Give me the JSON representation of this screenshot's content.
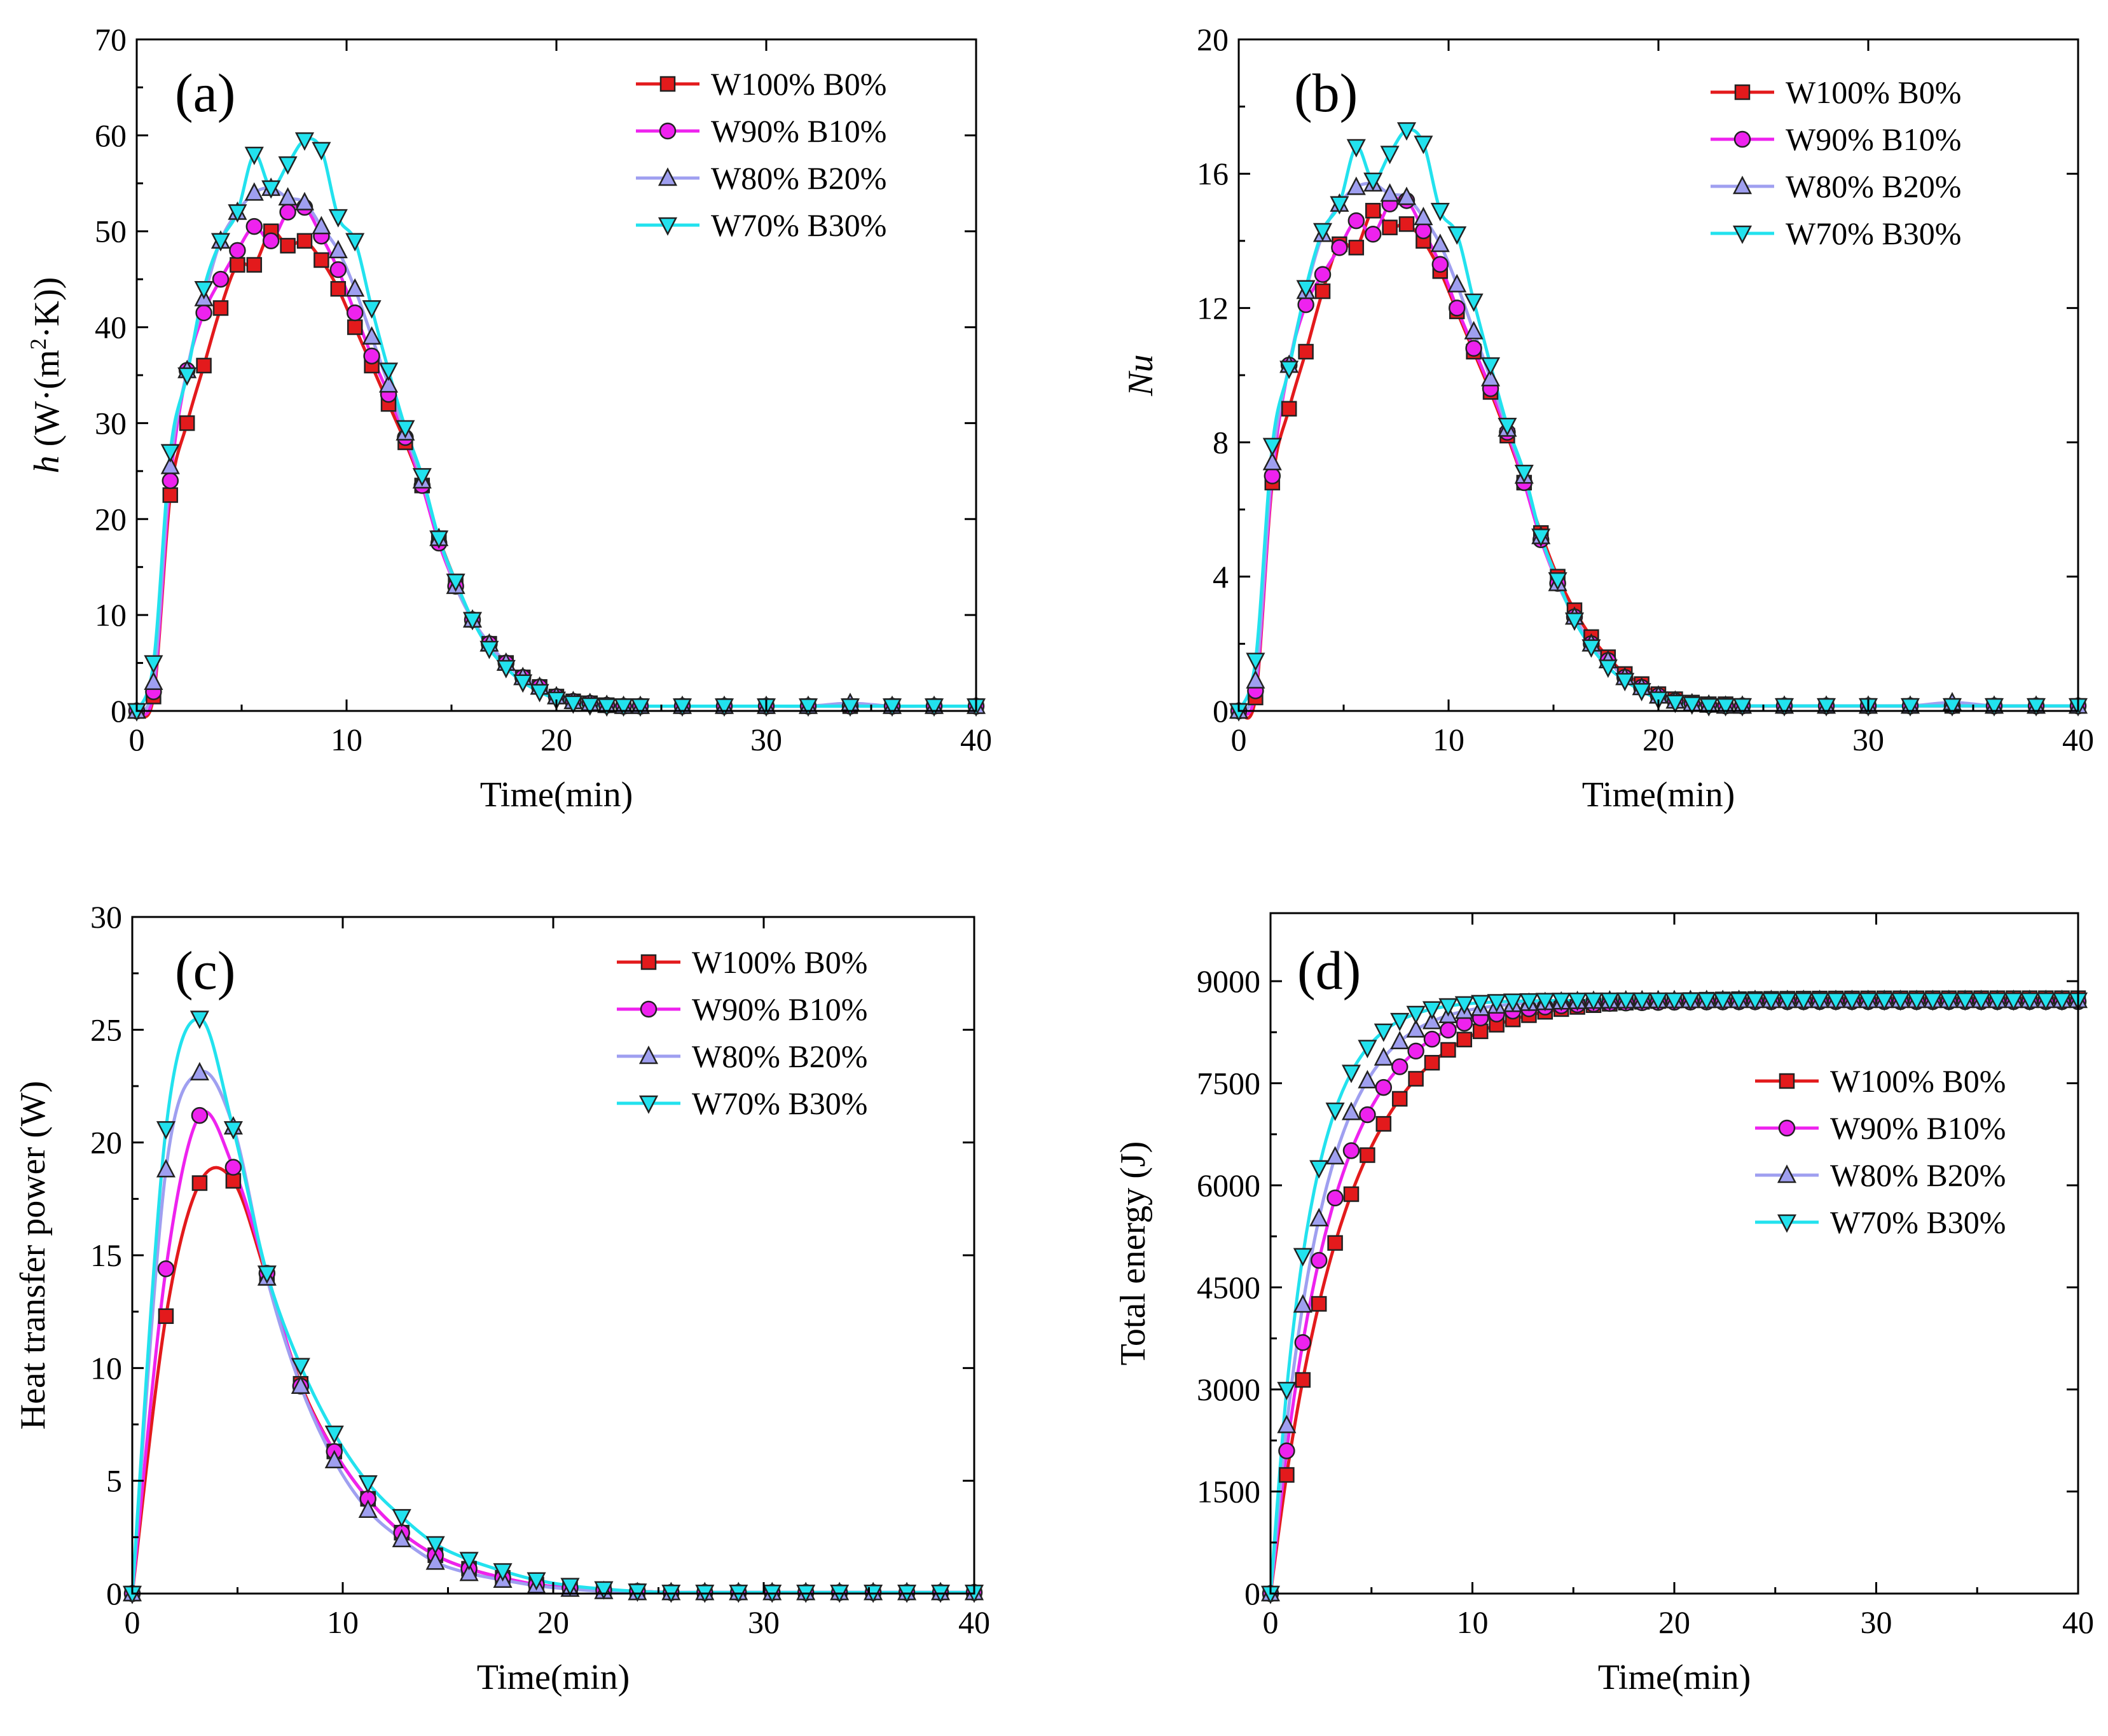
{
  "colors": {
    "s1": "#e31a1c",
    "s2": "#ee22ee",
    "s3": "#9f9ff0",
    "s4": "#22e2ee"
  },
  "chart_data": [
    {
      "type": "line",
      "panel_label": "(a)",
      "xlabel": "Time(min)",
      "ylabel_italic": "h",
      "ylabel_rest": " (W·(m",
      "ylabel_sup": "2",
      "ylabel_tail": "·K))",
      "xlim": [
        0,
        40
      ],
      "ylim": [
        0,
        70
      ],
      "xticks": [
        "0",
        "10",
        "20",
        "30",
        "40"
      ],
      "yticks": [
        "0",
        "10",
        "20",
        "30",
        "40",
        "50",
        "60",
        "70"
      ],
      "legend_position": "top-right",
      "series": [
        {
          "name": "W100% B0%",
          "marker": "square",
          "color": "#e31a1c",
          "x": [
            0,
            0.8,
            1.6,
            2.4,
            3.2,
            4.0,
            4.8,
            5.6,
            6.4,
            7.2,
            8.0,
            8.8,
            9.6,
            10.4,
            11.2,
            12.0,
            12.8,
            13.6,
            14.4,
            15.2,
            16.0,
            16.8,
            17.6,
            18.4,
            19.2,
            20.0,
            20.8,
            21.6,
            22.4,
            23.2,
            24.0,
            26,
            28,
            30,
            32,
            34,
            36,
            38,
            40
          ],
          "y": [
            0,
            1.5,
            22.5,
            30,
            36,
            42,
            46.5,
            46.5,
            50,
            48.5,
            49,
            47,
            44,
            40,
            36,
            32,
            28,
            23.5,
            18,
            13.5,
            9.5,
            7,
            5,
            3.5,
            2.5,
            1.5,
            1,
            0.8,
            0.6,
            0.5,
            0.5,
            0.5,
            0.5,
            0.5,
            0.5,
            0.5,
            0.5,
            0.5,
            0.5
          ]
        },
        {
          "name": "W90% B10%",
          "marker": "circle",
          "color": "#ee22ee",
          "x": [
            0,
            0.8,
            1.6,
            2.4,
            3.2,
            4.0,
            4.8,
            5.6,
            6.4,
            7.2,
            8.0,
            8.8,
            9.6,
            10.4,
            11.2,
            12.0,
            12.8,
            13.6,
            14.4,
            15.2,
            16.0,
            16.8,
            17.6,
            18.4,
            19.2,
            20.0,
            20.8,
            21.6,
            22.4,
            23.2,
            24.0,
            26,
            28,
            30,
            32,
            34,
            36,
            38,
            40
          ],
          "y": [
            0,
            2,
            24,
            35.5,
            41.5,
            45,
            48,
            50.5,
            49,
            52,
            52.5,
            49.5,
            46,
            41.5,
            37,
            33,
            28.5,
            23.5,
            17.5,
            13,
            9.5,
            7,
            5,
            3.5,
            2.5,
            1.5,
            1,
            0.8,
            0.6,
            0.5,
            0.5,
            0.5,
            0.5,
            0.5,
            0.5,
            0.5,
            0.5,
            0.5,
            0.5
          ]
        },
        {
          "name": "W80% B20%",
          "marker": "triangle",
          "color": "#9f9ff0",
          "x": [
            0,
            0.8,
            1.6,
            2.4,
            3.2,
            4.0,
            4.8,
            5.6,
            6.4,
            7.2,
            8.0,
            8.8,
            9.6,
            10.4,
            11.2,
            12.0,
            12.8,
            13.6,
            14.4,
            15.2,
            16.0,
            16.8,
            17.6,
            18.4,
            19.2,
            20.0,
            20.8,
            21.6,
            22.4,
            23.2,
            24.0,
            26,
            28,
            30,
            32,
            34,
            36,
            38,
            40
          ],
          "y": [
            0,
            3,
            25.5,
            35.5,
            43,
            49,
            52,
            54,
            54.5,
            53.5,
            53,
            50.5,
            48,
            44,
            39,
            34,
            29,
            24,
            18,
            13,
            9.5,
            7,
            5,
            3.5,
            2.5,
            1.5,
            1,
            0.8,
            0.6,
            0.5,
            0.5,
            0.5,
            0.5,
            0.5,
            0.5,
            0.8,
            0.5,
            0.5,
            0.5
          ]
        },
        {
          "name": "W70% B30%",
          "marker": "triangle-down",
          "color": "#22e2ee",
          "x": [
            0,
            0.8,
            1.6,
            2.4,
            3.2,
            4.0,
            4.8,
            5.6,
            6.4,
            7.2,
            8.0,
            8.8,
            9.6,
            10.4,
            11.2,
            12.0,
            12.8,
            13.6,
            14.4,
            15.2,
            16.0,
            16.8,
            17.6,
            18.4,
            19.2,
            20.0,
            20.8,
            21.6,
            22.4,
            23.2,
            24.0,
            26,
            28,
            30,
            32,
            34,
            36,
            38,
            40
          ],
          "y": [
            0,
            5,
            27,
            35,
            44,
            49,
            52,
            58,
            54.5,
            57,
            59.5,
            58.5,
            51.5,
            49,
            42,
            35.5,
            29.5,
            24.5,
            18,
            13.5,
            9.5,
            6.5,
            4.5,
            3,
            2,
            1.2,
            0.8,
            0.6,
            0.5,
            0.5,
            0.5,
            0.5,
            0.5,
            0.5,
            0.5,
            0.5,
            0.5,
            0.5,
            0.5
          ]
        }
      ]
    },
    {
      "type": "line",
      "panel_label": "(b)",
      "xlabel": "Time(min)",
      "ylabel_italic": "Nu",
      "ylabel_rest": "",
      "ylabel_sup": "",
      "ylabel_tail": "",
      "xlim": [
        0,
        40
      ],
      "ylim": [
        0,
        20
      ],
      "xticks": [
        "0",
        "10",
        "20",
        "30",
        "40"
      ],
      "yticks": [
        "0",
        "4",
        "8",
        "12",
        "16",
        "20"
      ],
      "legend_position": "top-right",
      "series": [
        {
          "name": "W100% B0%",
          "marker": "square",
          "color": "#e31a1c",
          "x": [
            0,
            0.8,
            1.6,
            2.4,
            3.2,
            4.0,
            4.8,
            5.6,
            6.4,
            7.2,
            8.0,
            8.8,
            9.6,
            10.4,
            11.2,
            12.0,
            12.8,
            13.6,
            14.4,
            15.2,
            16.0,
            16.8,
            17.6,
            18.4,
            19.2,
            20.0,
            20.8,
            21.6,
            22.4,
            23.2,
            24.0,
            26,
            28,
            30,
            32,
            34,
            36,
            38,
            40
          ],
          "y": [
            0,
            0.4,
            6.8,
            9,
            10.7,
            12.5,
            13.9,
            13.8,
            14.9,
            14.4,
            14.5,
            14,
            13.1,
            11.9,
            10.7,
            9.5,
            8.2,
            6.8,
            5.3,
            4,
            3,
            2.2,
            1.6,
            1.1,
            0.8,
            0.5,
            0.35,
            0.25,
            0.2,
            0.2,
            0.15,
            0.15,
            0.15,
            0.15,
            0.15,
            0.15,
            0.15,
            0.15,
            0.15
          ]
        },
        {
          "name": "W90% B10%",
          "marker": "circle",
          "color": "#ee22ee",
          "x": [
            0,
            0.8,
            1.6,
            2.4,
            3.2,
            4.0,
            4.8,
            5.6,
            6.4,
            7.2,
            8.0,
            8.8,
            9.6,
            10.4,
            11.2,
            12.0,
            12.8,
            13.6,
            14.4,
            15.2,
            16.0,
            16.8,
            17.6,
            18.4,
            19.2,
            20.0,
            20.8,
            21.6,
            22.4,
            23.2,
            24.0,
            26,
            28,
            30,
            32,
            34,
            36,
            38,
            40
          ],
          "y": [
            0,
            0.6,
            7,
            10.3,
            12.1,
            13,
            13.8,
            14.6,
            14.2,
            15.1,
            15.2,
            14.3,
            13.3,
            12,
            10.8,
            9.6,
            8.3,
            6.8,
            5.1,
            3.8,
            2.8,
            2,
            1.5,
            1,
            0.7,
            0.45,
            0.3,
            0.22,
            0.18,
            0.15,
            0.15,
            0.15,
            0.15,
            0.15,
            0.15,
            0.15,
            0.15,
            0.15,
            0.15
          ]
        },
        {
          "name": "W80% B20%",
          "marker": "triangle",
          "color": "#9f9ff0",
          "x": [
            0,
            0.8,
            1.6,
            2.4,
            3.2,
            4.0,
            4.8,
            5.6,
            6.4,
            7.2,
            8.0,
            8.8,
            9.6,
            10.4,
            11.2,
            12.0,
            12.8,
            13.6,
            14.4,
            15.2,
            16.0,
            16.8,
            17.6,
            18.4,
            19.2,
            20.0,
            20.8,
            21.6,
            22.4,
            23.2,
            24.0,
            26,
            28,
            30,
            32,
            34,
            36,
            38,
            40
          ],
          "y": [
            0,
            0.9,
            7.4,
            10.3,
            12.5,
            14.2,
            15.1,
            15.6,
            15.7,
            15.4,
            15.3,
            14.7,
            13.9,
            12.7,
            11.3,
            9.9,
            8.4,
            7,
            5.2,
            3.8,
            2.8,
            2,
            1.5,
            1,
            0.7,
            0.45,
            0.3,
            0.22,
            0.18,
            0.15,
            0.15,
            0.15,
            0.15,
            0.15,
            0.15,
            0.25,
            0.15,
            0.15,
            0.15
          ]
        },
        {
          "name": "W70% B30%",
          "marker": "triangle-down",
          "color": "#22e2ee",
          "x": [
            0,
            0.8,
            1.6,
            2.4,
            3.2,
            4.0,
            4.8,
            5.6,
            6.4,
            7.2,
            8.0,
            8.8,
            9.6,
            10.4,
            11.2,
            12.0,
            12.8,
            13.6,
            14.4,
            15.2,
            16.0,
            16.8,
            17.6,
            18.4,
            19.2,
            20.0,
            20.8,
            21.6,
            22.4,
            23.2,
            24.0,
            26,
            28,
            30,
            32,
            34,
            36,
            38,
            40
          ],
          "y": [
            0,
            1.5,
            7.9,
            10.2,
            12.6,
            14.3,
            15.1,
            16.8,
            15.8,
            16.6,
            17.3,
            16.9,
            14.9,
            14.2,
            12.2,
            10.3,
            8.5,
            7.1,
            5.2,
            3.9,
            2.7,
            1.9,
            1.3,
            0.9,
            0.6,
            0.35,
            0.25,
            0.2,
            0.15,
            0.15,
            0.15,
            0.15,
            0.15,
            0.15,
            0.15,
            0.15,
            0.15,
            0.15,
            0.15
          ]
        }
      ]
    },
    {
      "type": "line",
      "panel_label": "(c)",
      "xlabel": "Time(min)",
      "ylabel_italic": "",
      "ylabel_rest": "Heat transfer power (W)",
      "ylabel_sup": "",
      "ylabel_tail": "",
      "xlim": [
        0,
        40
      ],
      "ylim": [
        0,
        30
      ],
      "xticks": [
        "0",
        "10",
        "20",
        "30",
        "40"
      ],
      "yticks": [
        "0",
        "5",
        "10",
        "15",
        "20",
        "25",
        "30"
      ],
      "legend_position": "top-right",
      "series": [
        {
          "name": "W100% B0%",
          "marker": "square",
          "color": "#e31a1c",
          "x": [
            0,
            1.6,
            3.2,
            4.8,
            6.4,
            8.0,
            9.6,
            11.2,
            12.8,
            14.4,
            16.0,
            17.6,
            19.2,
            20.8,
            22.4,
            24.0,
            25.6,
            27.2,
            28.8,
            30.4,
            32.0,
            33.6,
            35.2,
            36.8,
            38.4,
            40.0
          ],
          "y": [
            0,
            12.3,
            18.2,
            18.3,
            14,
            9.3,
            6.3,
            4.2,
            2.7,
            1.7,
            1.1,
            0.7,
            0.4,
            0.25,
            0.15,
            0.1,
            0.05,
            0.05,
            0.05,
            0.05,
            0.05,
            0.05,
            0.05,
            0.05,
            0.05,
            0.05
          ]
        },
        {
          "name": "W90% B10%",
          "marker": "circle",
          "color": "#ee22ee",
          "x": [
            0,
            1.6,
            3.2,
            4.8,
            6.4,
            8.0,
            9.6,
            11.2,
            12.8,
            14.4,
            16.0,
            17.6,
            19.2,
            20.8,
            22.4,
            24.0,
            25.6,
            27.2,
            28.8,
            30.4,
            32.0,
            33.6,
            35.2,
            36.8,
            38.4,
            40.0
          ],
          "y": [
            0,
            14.4,
            21.2,
            18.9,
            14.2,
            9.2,
            6.3,
            4.2,
            2.7,
            1.7,
            1.1,
            0.7,
            0.4,
            0.25,
            0.15,
            0.1,
            0.05,
            0.05,
            0.05,
            0.05,
            0.05,
            0.05,
            0.05,
            0.05,
            0.05,
            0.05
          ]
        },
        {
          "name": "W80% B20%",
          "marker": "triangle",
          "color": "#9f9ff0",
          "x": [
            0,
            1.6,
            3.2,
            4.8,
            6.4,
            8.0,
            9.6,
            11.2,
            12.8,
            14.4,
            16.0,
            17.6,
            19.2,
            20.8,
            22.4,
            24.0,
            25.6,
            27.2,
            28.8,
            30.4,
            32.0,
            33.6,
            35.2,
            36.8,
            38.4,
            40.0
          ],
          "y": [
            0,
            18.8,
            23.1,
            20.7,
            14,
            9.2,
            5.9,
            3.7,
            2.4,
            1.4,
            0.9,
            0.6,
            0.35,
            0.2,
            0.1,
            0.05,
            0.05,
            0.05,
            0.05,
            0.05,
            0.05,
            0.05,
            0.05,
            0.05,
            0.05,
            0.05
          ]
        },
        {
          "name": "W70% B30%",
          "marker": "triangle-down",
          "color": "#22e2ee",
          "x": [
            0,
            1.6,
            3.2,
            4.8,
            6.4,
            8.0,
            9.6,
            11.2,
            12.8,
            14.4,
            16.0,
            17.6,
            19.2,
            20.8,
            22.4,
            24.0,
            25.6,
            27.2,
            28.8,
            30.4,
            32.0,
            33.6,
            35.2,
            36.8,
            38.4,
            40.0
          ],
          "y": [
            0,
            20.6,
            25.5,
            20.6,
            14.2,
            10.1,
            7.1,
            4.9,
            3.4,
            2.2,
            1.5,
            1,
            0.6,
            0.35,
            0.2,
            0.1,
            0.05,
            0.05,
            0.05,
            0.05,
            0.05,
            0.05,
            0.05,
            0.05,
            0.05,
            0.05
          ]
        }
      ]
    },
    {
      "type": "line",
      "panel_label": "(d)",
      "xlabel": "Time(min)",
      "ylabel_italic": "",
      "ylabel_rest": "Total energy (J)",
      "ylabel_sup": "",
      "ylabel_tail": "",
      "xlim": [
        0,
        40
      ],
      "ylim": [
        0,
        10000
      ],
      "xticks": [
        "0",
        "10",
        "20",
        "30",
        "40"
      ],
      "yticks": [
        "0",
        "1500",
        "3000",
        "4500",
        "6000",
        "7500",
        "9000"
      ],
      "ytick_values": [
        0,
        1500,
        3000,
        4500,
        6000,
        7500,
        9000
      ],
      "legend_position": "right",
      "series": [
        {
          "name": "W100% B0%",
          "marker": "square",
          "color": "#e31a1c",
          "final": 8750,
          "tau": 3.6
        },
        {
          "name": "W90% B10%",
          "marker": "circle",
          "color": "#ee22ee",
          "final": 8700,
          "tau": 2.9
        },
        {
          "name": "W80% B20%",
          "marker": "triangle",
          "color": "#9f9ff0",
          "final": 8720,
          "tau": 2.4
        },
        {
          "name": "W70% B30%",
          "marker": "triangle-down",
          "color": "#22e2ee",
          "final": 8720,
          "tau": 1.9
        }
      ]
    }
  ]
}
